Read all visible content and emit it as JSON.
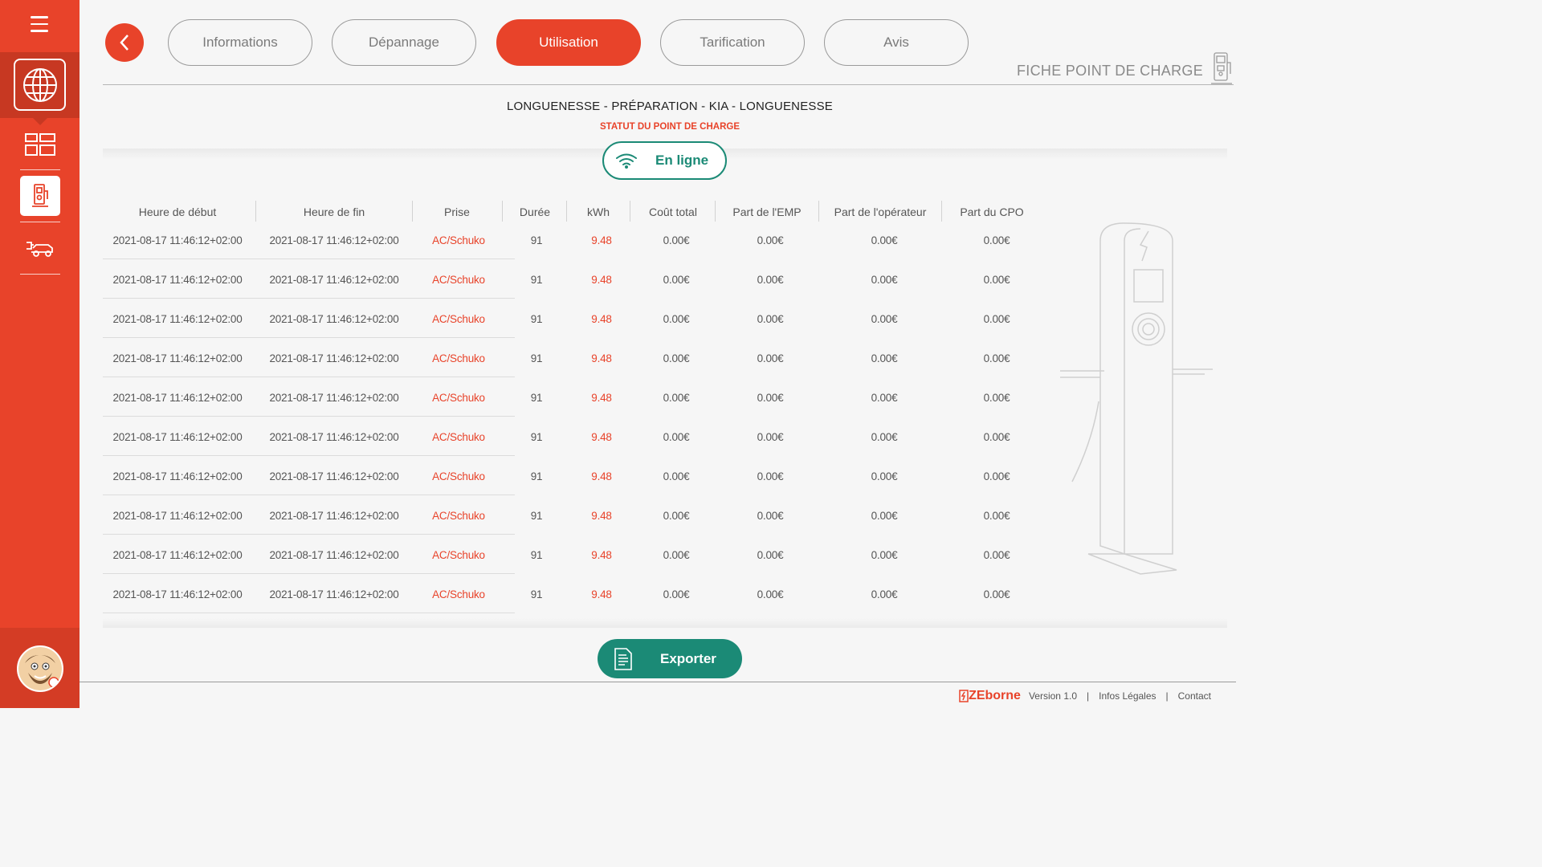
{
  "tabs": [
    {
      "label": "Informations",
      "active": false
    },
    {
      "label": "Dépannage",
      "active": false
    },
    {
      "label": "Utilisation",
      "active": true
    },
    {
      "label": "Tarification",
      "active": false
    },
    {
      "label": "Avis",
      "active": false
    }
  ],
  "page_heading": "FICHE POINT DE CHARGE",
  "station": {
    "name": "LONGUENESSE - PRÉPARATION - KIA - LONGUENESSE",
    "status_label": "STATUT DU POINT DE CHARGE",
    "status_value": "En ligne"
  },
  "table": {
    "headers": [
      "Heure de début",
      "Heure de fin",
      "Prise",
      "Durée",
      "kWh",
      "Coût total",
      "Part de l'EMP",
      "Part de l'opérateur",
      "Part du CPO"
    ],
    "rows": [
      [
        "2021-08-17 11:46:12+02:00",
        "2021-08-17 11:46:12+02:00",
        "AC/Schuko",
        "91",
        "9.48",
        "0.00€",
        "0.00€",
        "0.00€",
        "0.00€"
      ],
      [
        "2021-08-17 11:46:12+02:00",
        "2021-08-17 11:46:12+02:00",
        "AC/Schuko",
        "91",
        "9.48",
        "0.00€",
        "0.00€",
        "0.00€",
        "0.00€"
      ],
      [
        "2021-08-17 11:46:12+02:00",
        "2021-08-17 11:46:12+02:00",
        "AC/Schuko",
        "91",
        "9.48",
        "0.00€",
        "0.00€",
        "0.00€",
        "0.00€"
      ],
      [
        "2021-08-17 11:46:12+02:00",
        "2021-08-17 11:46:12+02:00",
        "AC/Schuko",
        "91",
        "9.48",
        "0.00€",
        "0.00€",
        "0.00€",
        "0.00€"
      ],
      [
        "2021-08-17 11:46:12+02:00",
        "2021-08-17 11:46:12+02:00",
        "AC/Schuko",
        "91",
        "9.48",
        "0.00€",
        "0.00€",
        "0.00€",
        "0.00€"
      ],
      [
        "2021-08-17 11:46:12+02:00",
        "2021-08-17 11:46:12+02:00",
        "AC/Schuko",
        "91",
        "9.48",
        "0.00€",
        "0.00€",
        "0.00€",
        "0.00€"
      ],
      [
        "2021-08-17 11:46:12+02:00",
        "2021-08-17 11:46:12+02:00",
        "AC/Schuko",
        "91",
        "9.48",
        "0.00€",
        "0.00€",
        "0.00€",
        "0.00€"
      ],
      [
        "2021-08-17 11:46:12+02:00",
        "2021-08-17 11:46:12+02:00",
        "AC/Schuko",
        "91",
        "9.48",
        "0.00€",
        "0.00€",
        "0.00€",
        "0.00€"
      ],
      [
        "2021-08-17 11:46:12+02:00",
        "2021-08-17 11:46:12+02:00",
        "AC/Schuko",
        "91",
        "9.48",
        "0.00€",
        "0.00€",
        "0.00€",
        "0.00€"
      ],
      [
        "2021-08-17 11:46:12+02:00",
        "2021-08-17 11:46:12+02:00",
        "AC/Schuko",
        "91",
        "9.48",
        "0.00€",
        "0.00€",
        "0.00€",
        "0.00€"
      ]
    ]
  },
  "export_label": "Exporter",
  "footer": {
    "brand": "ZEborne",
    "version": "Version 1.0",
    "legal": "Infos Légales",
    "contact": "Contact"
  },
  "colors": {
    "accent": "#e8432a",
    "success": "#1b8a76"
  },
  "icons": {
    "sidebar": [
      "hamburger-menu-icon",
      "globe-icon",
      "dashboard-icon",
      "charging-station-icon",
      "car-charging-icon"
    ],
    "back": "chevron-left-icon",
    "status": "wifi-icon",
    "export": "document-icon"
  }
}
